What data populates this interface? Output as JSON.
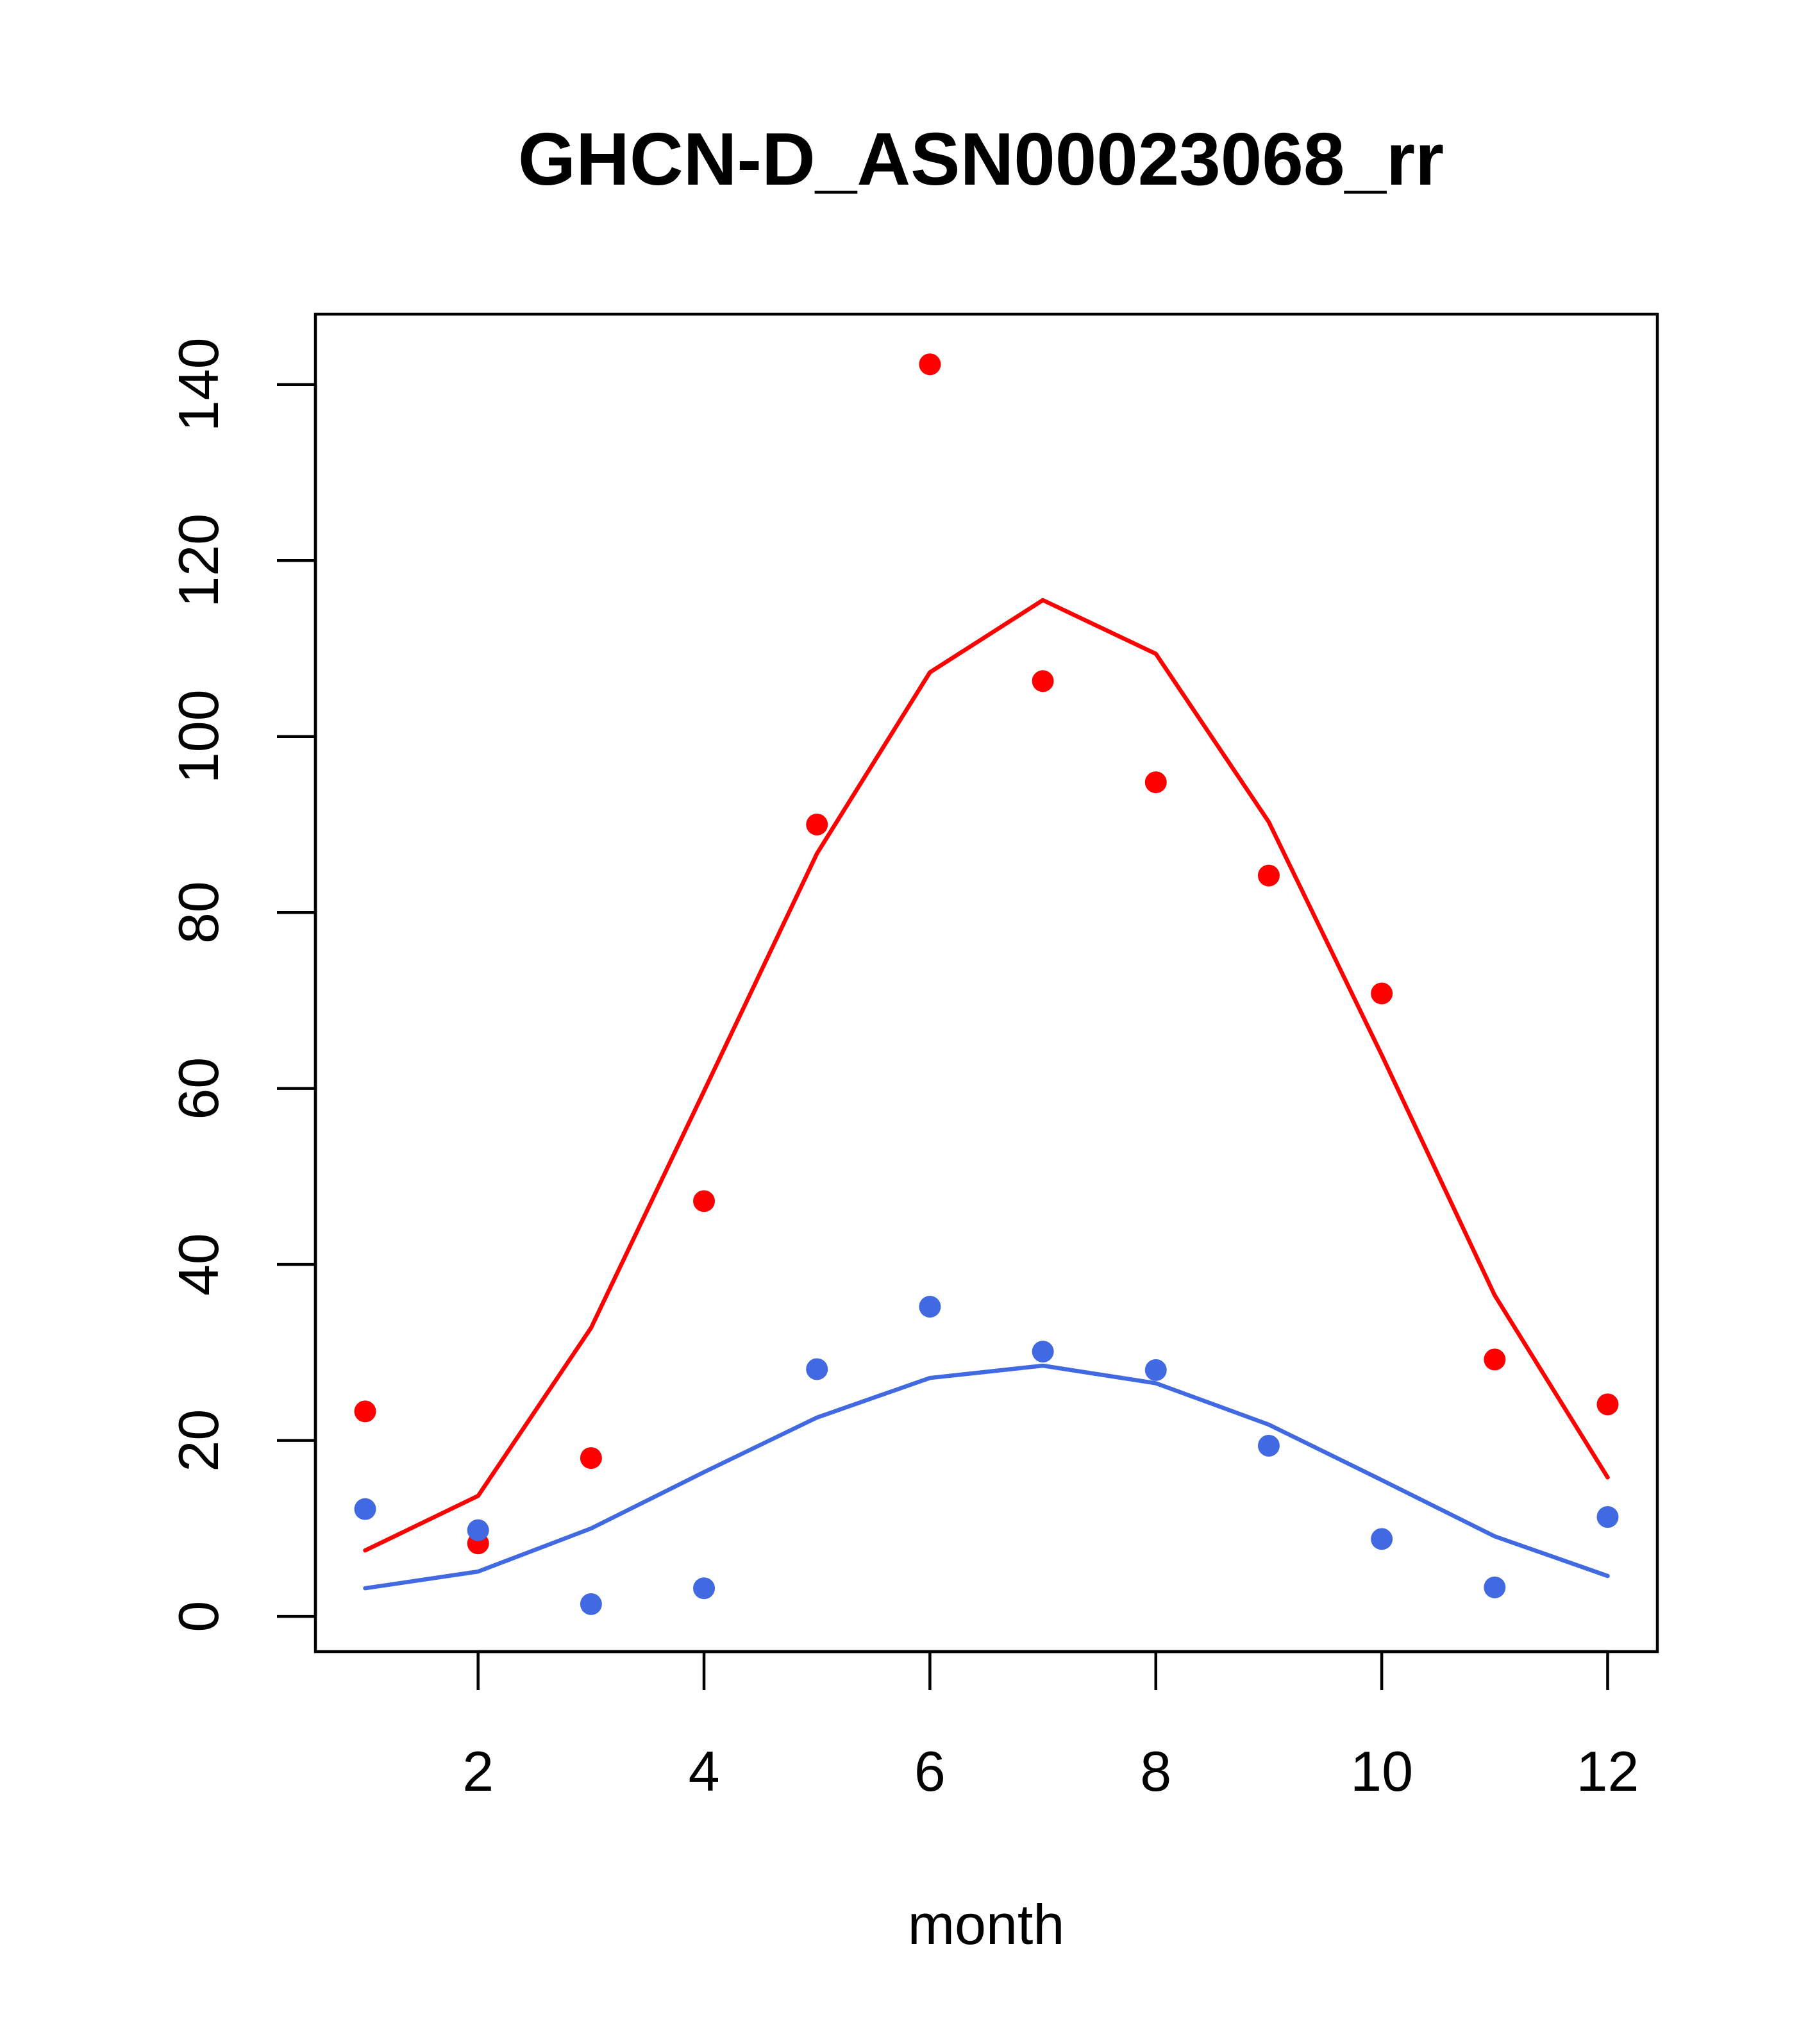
{
  "chart_data": {
    "type": "scatter",
    "title": "GHCN-D_ASN00023068_rr",
    "xlabel": "month",
    "ylabel": "",
    "xlim": [
      0.56,
      12.44
    ],
    "ylim": [
      -4,
      148
    ],
    "grid": false,
    "x_ticks": [
      2,
      4,
      6,
      8,
      10,
      12
    ],
    "y_ticks": [
      0,
      20,
      40,
      60,
      80,
      100,
      120,
      140
    ],
    "x": [
      1,
      2,
      3,
      4,
      5,
      6,
      7,
      8,
      9,
      10,
      11,
      12
    ],
    "series": [
      {
        "color": "#ff0000",
        "points": [
          23.3,
          8.3,
          18.0,
          47.2,
          90.0,
          142.3,
          106.3,
          94.8,
          84.2,
          70.8,
          29.2,
          24.1
        ],
        "line": [
          7.5,
          13.7,
          32.8,
          59.7,
          86.7,
          107.3,
          115.5,
          109.4,
          90.3,
          63.8,
          36.5,
          15.8
        ]
      },
      {
        "color": "#4169e1",
        "points": [
          12.2,
          9.8,
          1.4,
          3.2,
          28.1,
          35.2,
          30.1,
          28.0,
          19.4,
          8.8,
          3.3,
          11.3
        ],
        "line": [
          3.2,
          5.1,
          10.0,
          16.4,
          22.6,
          27.1,
          28.5,
          26.5,
          21.8,
          15.5,
          9.1,
          4.6
        ]
      }
    ]
  }
}
